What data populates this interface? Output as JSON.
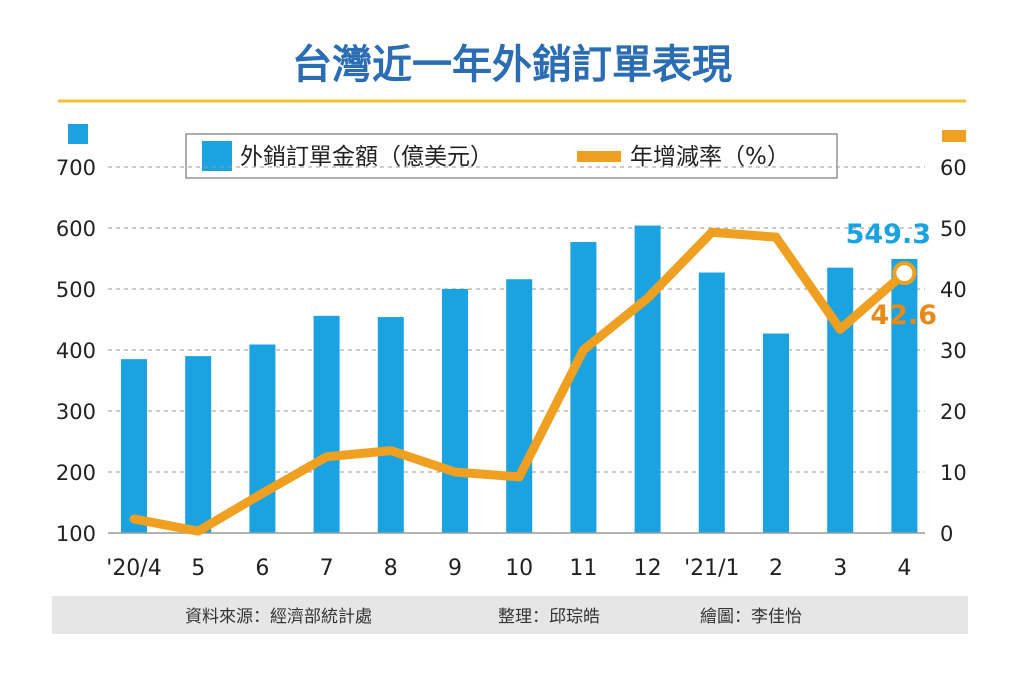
{
  "chart_data": {
    "type": "bar",
    "title": "台灣近一年外銷訂單表現",
    "categories": [
      "'20/4",
      "5",
      "6",
      "7",
      "8",
      "9",
      "10",
      "11",
      "12",
      "'21/1",
      "2",
      "3",
      "4"
    ],
    "series": [
      {
        "name": "外銷訂單金額（億美元）",
        "type": "bar",
        "axis": "left",
        "color": "#1aa3e0",
        "values": [
          385,
          390,
          409,
          456,
          454,
          500,
          516,
          577,
          604,
          527,
          427,
          535,
          549.3
        ]
      },
      {
        "name": "年增減率（%）",
        "type": "line",
        "axis": "right",
        "color": "#f0a020",
        "values": [
          2.3,
          0.3,
          6.5,
          12.5,
          13.5,
          10.0,
          9.2,
          30.0,
          38.5,
          49.3,
          48.5,
          33.4,
          42.6
        ]
      }
    ],
    "left_axis": {
      "ylim": [
        100,
        700
      ],
      "ticks": [
        "100",
        "200",
        "300",
        "400",
        "500",
        "600",
        "700"
      ]
    },
    "right_axis": {
      "ylim": [
        0,
        60
      ],
      "ticks": [
        "0",
        "10",
        "20",
        "30",
        "40",
        "50",
        "60"
      ]
    },
    "annotations": {
      "bar_last": "549.3",
      "line_last": "42.6"
    },
    "grid": true,
    "legend_position": "top-center"
  },
  "footer": {
    "source": "資料來源：經濟部統計處",
    "editor": "整理：邱琮皓",
    "illustrator": "繪圖：李佳怡"
  }
}
